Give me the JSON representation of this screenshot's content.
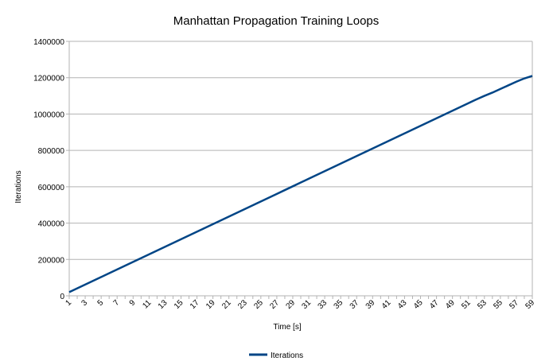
{
  "chart_data": {
    "type": "line",
    "title": "Manhattan Propagation Training Loops",
    "xlabel": "Time [s]",
    "ylabel": "Iterations",
    "ylim": [
      0,
      1400000
    ],
    "yticks": [
      "0",
      "200000",
      "400000",
      "600000",
      "800000",
      "1000000",
      "1200000",
      "1400000"
    ],
    "x": [
      1,
      2,
      3,
      4,
      5,
      6,
      7,
      8,
      9,
      10,
      11,
      12,
      13,
      14,
      15,
      16,
      17,
      18,
      19,
      20,
      21,
      22,
      23,
      24,
      25,
      26,
      27,
      28,
      29,
      30,
      31,
      32,
      33,
      34,
      35,
      36,
      37,
      38,
      39,
      40,
      41,
      42,
      43,
      44,
      45,
      46,
      47,
      48,
      49,
      50,
      51,
      52,
      53,
      54,
      55,
      56,
      57,
      58,
      59
    ],
    "xtick_labels": [
      "1",
      "3",
      "5",
      "7",
      "9",
      "11",
      "13",
      "15",
      "17",
      "19",
      "21",
      "23",
      "25",
      "27",
      "29",
      "31",
      "33",
      "35",
      "37",
      "39",
      "41",
      "43",
      "45",
      "47",
      "49",
      "51",
      "53",
      "55",
      "57",
      "59"
    ],
    "grid": true,
    "legend_position": "bottom",
    "series": [
      {
        "name": "Iterations",
        "color": "#004586",
        "values": [
          20000,
          40800,
          61600,
          82400,
          103200,
          124000,
          144800,
          165600,
          186400,
          207200,
          228000,
          248800,
          269600,
          290400,
          311200,
          332000,
          352800,
          373600,
          394400,
          415200,
          436000,
          456800,
          477600,
          498400,
          519200,
          540000,
          560800,
          581600,
          602400,
          623200,
          644000,
          664800,
          685600,
          706400,
          727200,
          748000,
          768800,
          789600,
          810400,
          831200,
          852000,
          872800,
          893600,
          914400,
          935200,
          956000,
          976800,
          997600,
          1018400,
          1039200,
          1060000,
          1080800,
          1100000,
          1118000,
          1138000,
          1158000,
          1178000,
          1196000,
          1210000
        ]
      }
    ]
  }
}
